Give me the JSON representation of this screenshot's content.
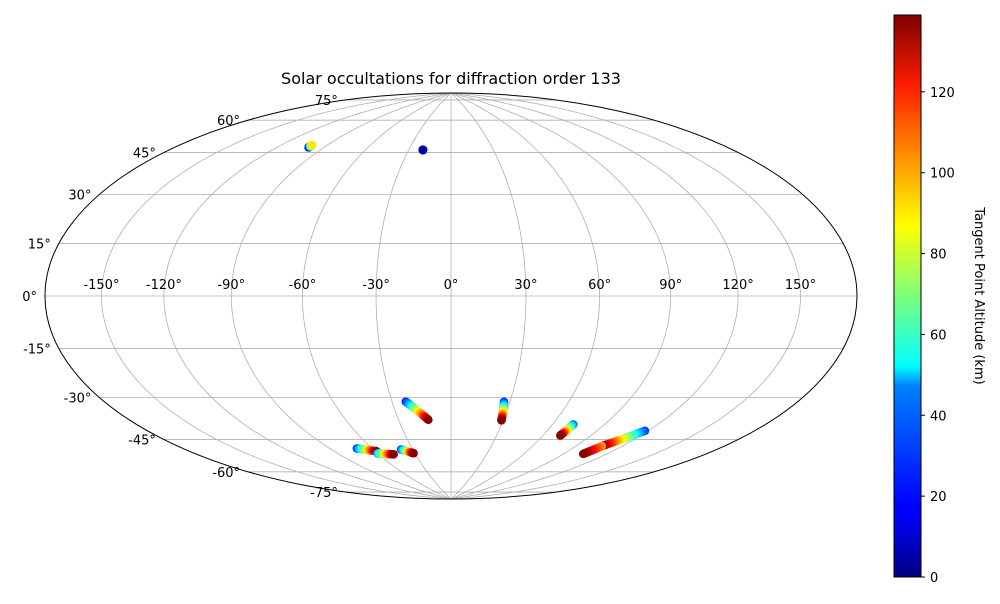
{
  "chart_data": {
    "type": "scatter",
    "projection": "hammer",
    "title": "Solar occultations for diffraction order 133",
    "xlabel": "",
    "ylabel": "",
    "grid": true,
    "lon_ticks": [
      -150,
      -120,
      -90,
      -60,
      -30,
      0,
      30,
      60,
      90,
      120,
      150
    ],
    "lon_tick_labels": [
      "-150°",
      "-120°",
      "-90°",
      "-60°",
      "-30°",
      "0°",
      "30°",
      "60°",
      "90°",
      "120°",
      "150°"
    ],
    "lat_ticks": [
      -75,
      -60,
      -45,
      -30,
      -15,
      0,
      15,
      30,
      45,
      60,
      75
    ],
    "lat_tick_labels": [
      "-75°",
      "-60°",
      "-45°",
      "-30°",
      "-15°",
      "0°",
      "15°",
      "30°",
      "45°",
      "60°",
      "75°"
    ],
    "colorbar": {
      "label": "Tangent Point Altitude (km)",
      "colormap": "jet",
      "range": [
        0,
        139
      ],
      "ticks": [
        0,
        20,
        40,
        60,
        80,
        100,
        120
      ],
      "tick_labels": [
        "0",
        "20",
        "40",
        "60",
        "80",
        "100",
        "120"
      ]
    },
    "tracks": [
      {
        "lon_start": -100,
        "lat_start": 58,
        "lon_end": -100,
        "lat_end": 59,
        "alt_start": 0,
        "alt_end": 90
      },
      {
        "lon_start": -20,
        "lat_start": 61,
        "lon_end": -20,
        "lat_end": 61,
        "alt_start": 5,
        "alt_end": 5
      },
      {
        "lon_start": -23,
        "lat_start": -43,
        "lon_end": -13,
        "lat_end": -51,
        "alt_start": 22,
        "alt_end": 138
      },
      {
        "lon_start": 27,
        "lat_start": -43,
        "lon_end": 29,
        "lat_end": -51,
        "alt_start": 22,
        "alt_end": 138
      },
      {
        "lon_start": -71,
        "lat_start": -62,
        "lon_end": -59,
        "lat_end": -64,
        "alt_start": 25,
        "alt_end": 138
      },
      {
        "lon_start": -60,
        "lat_start": -65,
        "lon_end": -48,
        "lat_end": -66,
        "alt_start": 40,
        "alt_end": 138
      },
      {
        "lon_start": -39,
        "lat_start": -64,
        "lon_end": -31,
        "lat_end": -66,
        "alt_start": 25,
        "alt_end": 138
      },
      {
        "lon_start": 72,
        "lat_start": -51,
        "lon_end": 71,
        "lat_end": -56,
        "alt_start": 30,
        "alt_end": 138
      },
      {
        "lon_start": 118,
        "lat_start": -50,
        "lon_end": 107,
        "lat_end": -58,
        "alt_start": 25,
        "alt_end": 138
      },
      {
        "lon_start": 107,
        "lat_start": -58,
        "lon_end": 104,
        "lat_end": -62,
        "alt_start": 100,
        "alt_end": 138
      }
    ]
  }
}
